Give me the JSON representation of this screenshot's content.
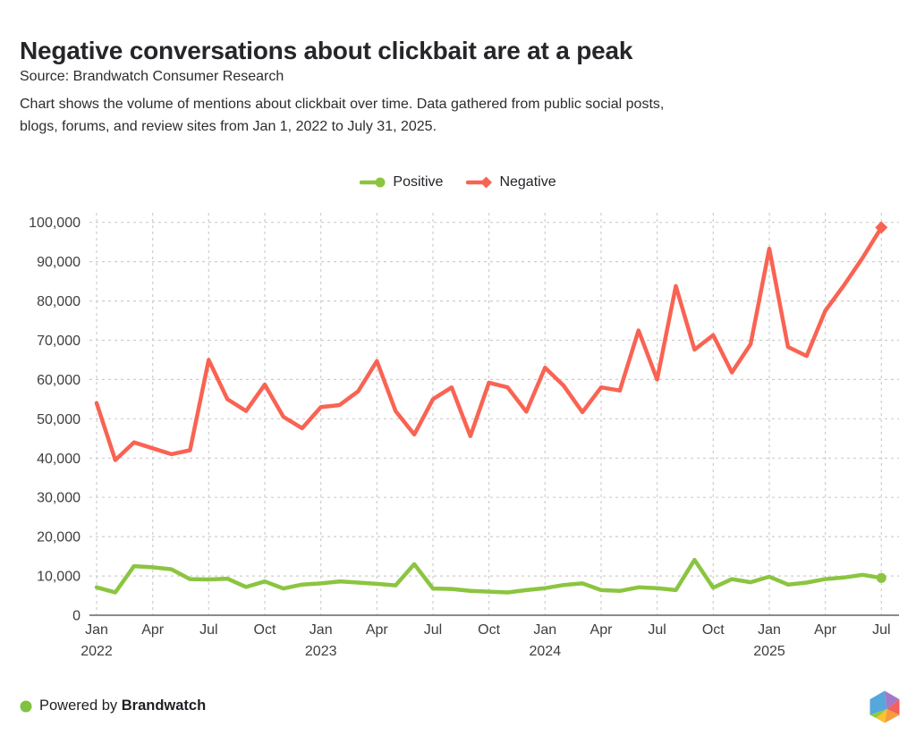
{
  "header": {
    "title": "Negative conversations about clickbait are at a peak",
    "source": "Source: Brandwatch Consumer Research",
    "description_lines": [
      "Chart shows the volume of mentions about clickbait over time. Data gathered from public social posts,",
      "blogs, forums, and review sites from Jan 1, 2022 to July 31, 2025."
    ]
  },
  "legend": {
    "positive_label": "Positive",
    "negative_label": "Negative"
  },
  "footer": {
    "powered_by": "Powered by",
    "brand": "Brandwatch"
  },
  "colors": {
    "positive": "#8bc540",
    "negative": "#f96353",
    "grid": "#cdcdcd",
    "axis_line": "#8b8b8b",
    "axis_text": "#3e3e42",
    "powered_dot": "#7fc241",
    "logo": {
      "blue": "#55a7dc",
      "purple": "#a678c8",
      "red": "#f4605a",
      "orange": "#f89c3d",
      "yellow": "#fbc12e",
      "green": "#96c93d"
    }
  },
  "chart_data": {
    "type": "line",
    "title": "Negative conversations about clickbait are at a peak",
    "x_unit": "month",
    "x_range": "Jan 2022 to Jul 2025 (monthly points)",
    "ylim": [
      0,
      100000
    ],
    "grid": true,
    "legend_position": "top-center",
    "y_ticks": [
      {
        "value": 0,
        "label": "0"
      },
      {
        "value": 10000,
        "label": "10,000"
      },
      {
        "value": 20000,
        "label": "20,000"
      },
      {
        "value": 30000,
        "label": "30,000"
      },
      {
        "value": 40000,
        "label": "40,000"
      },
      {
        "value": 50000,
        "label": "50,000"
      },
      {
        "value": 60000,
        "label": "60,000"
      },
      {
        "value": 70000,
        "label": "70,000"
      },
      {
        "value": 80000,
        "label": "80,000"
      },
      {
        "value": 90000,
        "label": "90,000"
      },
      {
        "value": 100000,
        "label": "100,000"
      }
    ],
    "x_ticks": [
      {
        "label": "Jan",
        "year": "2022"
      },
      {
        "label": "Apr"
      },
      {
        "label": "Jul"
      },
      {
        "label": "Oct"
      },
      {
        "label": "Jan",
        "year": "2023"
      },
      {
        "label": "Apr"
      },
      {
        "label": "Jul"
      },
      {
        "label": "Oct"
      },
      {
        "label": "Jan",
        "year": "2024"
      },
      {
        "label": "Apr"
      },
      {
        "label": "Jul"
      },
      {
        "label": "Oct"
      },
      {
        "label": "Jan",
        "year": "2025"
      },
      {
        "label": "Apr"
      },
      {
        "label": "Jul"
      }
    ],
    "series": [
      {
        "name": "Positive",
        "color": "#8bc540",
        "marker": "circle",
        "values": [
          7100,
          5800,
          12500,
          12200,
          11700,
          9200,
          9100,
          9300,
          7200,
          8600,
          6800,
          7800,
          8100,
          8600,
          8300,
          8000,
          7600,
          13000,
          6800,
          6700,
          6200,
          6000,
          5800,
          6400,
          6900,
          7700,
          8100,
          6400,
          6200,
          7100,
          6900,
          6400,
          14100,
          7000,
          9200,
          8400,
          9800,
          7800,
          8300,
          9200,
          9600,
          10300,
          9500
        ]
      },
      {
        "name": "Negative",
        "color": "#f96353",
        "marker": "diamond",
        "values": [
          54000,
          39500,
          44000,
          42500,
          41000,
          42000,
          65000,
          55000,
          52000,
          58700,
          50500,
          47600,
          53000,
          53500,
          57000,
          64700,
          52000,
          46000,
          55000,
          58000,
          45600,
          59200,
          58000,
          51800,
          63000,
          58400,
          51700,
          58000,
          57200,
          72500,
          60000,
          83800,
          67600,
          71300,
          61800,
          69000,
          93300,
          68300,
          66000,
          77500,
          84000,
          91000,
          98700
        ]
      }
    ]
  }
}
